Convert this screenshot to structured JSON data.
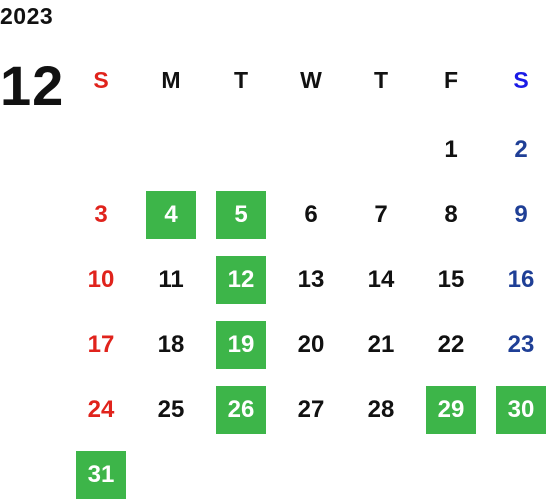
{
  "year": "2023",
  "month": "12",
  "weekdays": [
    {
      "label": "S",
      "kind": "sun"
    },
    {
      "label": "M",
      "kind": "week"
    },
    {
      "label": "T",
      "kind": "week"
    },
    {
      "label": "W",
      "kind": "week"
    },
    {
      "label": "T",
      "kind": "week"
    },
    {
      "label": "F",
      "kind": "week"
    },
    {
      "label": "S",
      "kind": "sat"
    }
  ],
  "first_day_column": 5,
  "days_in_month": 31,
  "highlighted_days": [
    4,
    5,
    12,
    19,
    26,
    29,
    30,
    31
  ],
  "colors": {
    "sunday": "#e0231c",
    "saturday_header": "#1a1ae6",
    "saturday": "#1f3f96",
    "highlight_bg": "#3db549",
    "text": "#111111"
  }
}
